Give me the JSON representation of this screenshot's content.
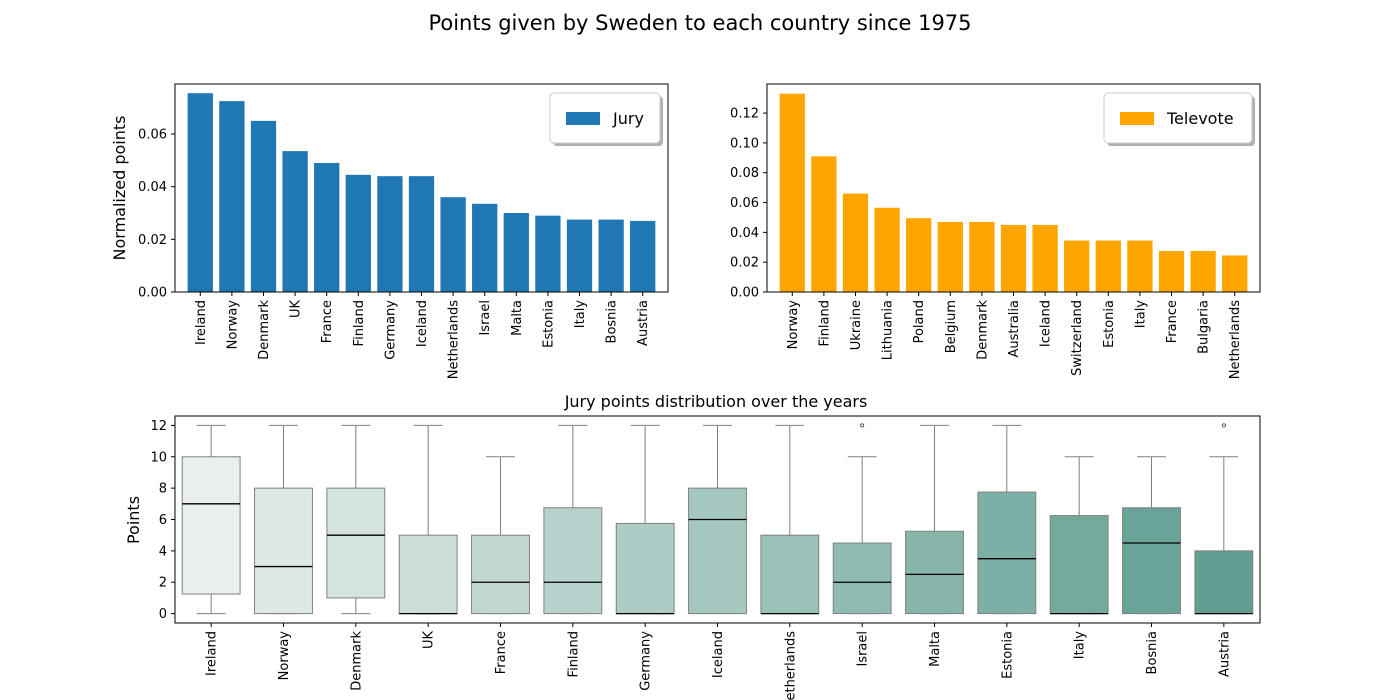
{
  "figure_title": "Points given by Sweden to each country since 1975",
  "colors": {
    "jury": "#1f77b4",
    "televote": "#ffa500",
    "box_light": "#e8efec",
    "box_dark": "#5f9e91",
    "box_edge": "#808080",
    "median": "#000000"
  },
  "chart_data": [
    {
      "type": "bar",
      "title": "",
      "ylabel": "Normalized points",
      "xlabel": "",
      "categories": [
        "Ireland",
        "Norway",
        "Denmark",
        "UK",
        "France",
        "Finland",
        "Germany",
        "Iceland",
        "Netherlands",
        "Israel",
        "Malta",
        "Estonia",
        "Italy",
        "Bosnia",
        "Austria"
      ],
      "series": [
        {
          "name": "Jury",
          "values": [
            0.0755,
            0.0725,
            0.065,
            0.0535,
            0.049,
            0.0445,
            0.044,
            0.044,
            0.036,
            0.0335,
            0.03,
            0.029,
            0.0275,
            0.0275,
            0.027
          ]
        }
      ],
      "ylim": [
        0,
        0.079
      ],
      "yticks": [
        0.0,
        0.02,
        0.04,
        0.06
      ],
      "ytick_labels": [
        "0.00",
        "0.02",
        "0.04",
        "0.06"
      ],
      "legend": "upper-right",
      "grid": false
    },
    {
      "type": "bar",
      "title": "",
      "ylabel": "",
      "xlabel": "",
      "categories": [
        "Norway",
        "Finland",
        "Ukraine",
        "Lithuania",
        "Poland",
        "Belgium",
        "Denmark",
        "Australia",
        "Iceland",
        "Switzerland",
        "Estonia",
        "Italy",
        "France",
        "Bulgaria",
        "Netherlands"
      ],
      "series": [
        {
          "name": "Televote",
          "values": [
            0.133,
            0.091,
            0.066,
            0.0565,
            0.0495,
            0.047,
            0.047,
            0.045,
            0.045,
            0.0345,
            0.0345,
            0.0345,
            0.0275,
            0.0275,
            0.0245
          ]
        }
      ],
      "ylim": [
        0,
        0.1395
      ],
      "yticks": [
        0.0,
        0.02,
        0.04,
        0.06,
        0.08,
        0.1,
        0.12
      ],
      "ytick_labels": [
        "0.00",
        "0.02",
        "0.04",
        "0.06",
        "0.08",
        "0.10",
        "0.12"
      ],
      "legend": "upper-right",
      "grid": false
    },
    {
      "type": "box",
      "title": "Jury points distribution over the years",
      "ylabel": "Points",
      "xlabel": "",
      "categories": [
        "Ireland",
        "Norway",
        "Denmark",
        "UK",
        "France",
        "Finland",
        "Germany",
        "Iceland",
        "Netherlands",
        "Israel",
        "Malta",
        "Estonia",
        "Italy",
        "Bosnia",
        "Austria"
      ],
      "boxes": [
        {
          "whislo": 0,
          "q1": 1.25,
          "med": 7,
          "q3": 10,
          "whishi": 12,
          "fliers": []
        },
        {
          "whislo": 0,
          "q1": 0,
          "med": 3,
          "q3": 8,
          "whishi": 12,
          "fliers": []
        },
        {
          "whislo": 0,
          "q1": 1,
          "med": 5,
          "q3": 8,
          "whishi": 12,
          "fliers": []
        },
        {
          "whislo": 0,
          "q1": 0,
          "med": 0,
          "q3": 5,
          "whishi": 12,
          "fliers": []
        },
        {
          "whislo": 0,
          "q1": 0,
          "med": 2,
          "q3": 5,
          "whishi": 10,
          "fliers": []
        },
        {
          "whislo": 0,
          "q1": 0,
          "med": 2,
          "q3": 6.75,
          "whishi": 12,
          "fliers": []
        },
        {
          "whislo": 0,
          "q1": 0,
          "med": 0,
          "q3": 5.75,
          "whishi": 12,
          "fliers": []
        },
        {
          "whislo": 0,
          "q1": 0,
          "med": 6,
          "q3": 8,
          "whishi": 12,
          "fliers": []
        },
        {
          "whislo": 0,
          "q1": 0,
          "med": 0,
          "q3": 5,
          "whishi": 12,
          "fliers": []
        },
        {
          "whislo": 0,
          "q1": 0,
          "med": 2,
          "q3": 4.5,
          "whishi": 10,
          "fliers": [
            12
          ]
        },
        {
          "whislo": 0,
          "q1": 0,
          "med": 2.5,
          "q3": 5.25,
          "whishi": 12,
          "fliers": []
        },
        {
          "whislo": 0,
          "q1": 0,
          "med": 3.5,
          "q3": 7.75,
          "whishi": 12,
          "fliers": []
        },
        {
          "whislo": 0,
          "q1": 0,
          "med": 0,
          "q3": 6.25,
          "whishi": 10,
          "fliers": []
        },
        {
          "whislo": 0,
          "q1": 0,
          "med": 4.5,
          "q3": 6.75,
          "whishi": 10,
          "fliers": []
        },
        {
          "whislo": 0,
          "q1": 0,
          "med": 0,
          "q3": 4,
          "whishi": 10,
          "fliers": [
            12
          ]
        }
      ],
      "ylim": [
        -0.6,
        12.6
      ],
      "yticks": [
        0,
        2,
        4,
        6,
        8,
        10,
        12
      ],
      "ytick_labels": [
        "0",
        "2",
        "4",
        "6",
        "8",
        "10",
        "12"
      ],
      "grid": false
    }
  ]
}
